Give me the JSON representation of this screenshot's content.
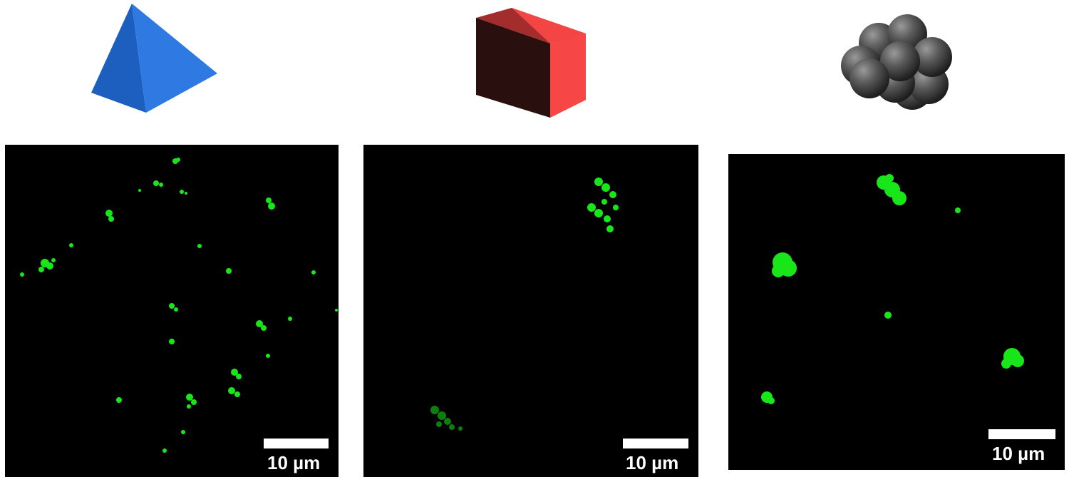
{
  "figure": {
    "shapes": [
      {
        "name": "tetrahedron",
        "color": "#2f74d8"
      },
      {
        "name": "cube",
        "color": "#f44545"
      },
      {
        "name": "sphere-cluster",
        "color": "#555555"
      }
    ],
    "panels": [
      {
        "id": "panel-1",
        "scale_label": "10 µm",
        "particle_color": "#19e619"
      },
      {
        "id": "panel-2",
        "scale_label": "10 µm",
        "particle_color": "#19e619"
      },
      {
        "id": "panel-3",
        "scale_label": "10 µm",
        "particle_color": "#19e619"
      }
    ]
  }
}
